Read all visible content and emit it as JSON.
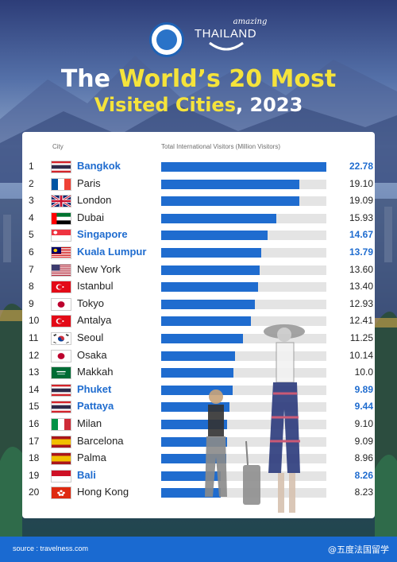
{
  "header": {
    "brand_small": "amazing",
    "brand_big": "THAILAND",
    "title_line1": [
      "The ",
      "World’s 20 Most"
    ],
    "title_line2": [
      "Visited Cities",
      ", 2023"
    ]
  },
  "chart_data": {
    "type": "bar",
    "column_headers": {
      "city": "City",
      "value": "Total International Visitors (Million Visitors)"
    },
    "xlim": [
      0,
      22.78
    ],
    "highlight_color": "#1f6ccf",
    "rows": [
      {
        "rank": "1",
        "city": "Bangkok",
        "value": 22.78,
        "value_label": "22.78",
        "highlight": true,
        "flag": "thailand-flag"
      },
      {
        "rank": "2",
        "city": "Paris",
        "value": 19.1,
        "value_label": "19.10",
        "highlight": false,
        "flag": "france-flag"
      },
      {
        "rank": "3",
        "city": "London",
        "value": 19.09,
        "value_label": "19.09",
        "highlight": false,
        "flag": "uk-flag"
      },
      {
        "rank": "4",
        "city": "Dubai",
        "value": 15.93,
        "value_label": "15.93",
        "highlight": false,
        "flag": "uae-flag"
      },
      {
        "rank": "5",
        "city": "Singapore",
        "value": 14.67,
        "value_label": "14.67",
        "highlight": true,
        "flag": "singapore-flag"
      },
      {
        "rank": "6",
        "city": "Kuala Lumpur",
        "value": 13.79,
        "value_label": "13.79",
        "highlight": true,
        "flag": "malaysia-flag"
      },
      {
        "rank": "7",
        "city": "New York",
        "value": 13.6,
        "value_label": "13.60",
        "highlight": false,
        "flag": "usa-flag"
      },
      {
        "rank": "8",
        "city": "Istanbul",
        "value": 13.4,
        "value_label": "13.40",
        "highlight": false,
        "flag": "turkey-flag"
      },
      {
        "rank": "9",
        "city": "Tokyo",
        "value": 12.93,
        "value_label": "12.93",
        "highlight": false,
        "flag": "japan-flag"
      },
      {
        "rank": "10",
        "city": "Antalya",
        "value": 12.41,
        "value_label": "12.41",
        "highlight": false,
        "flag": "turkey-flag"
      },
      {
        "rank": "11",
        "city": "Seoul",
        "value": 11.25,
        "value_label": "11.25",
        "highlight": false,
        "flag": "korea-flag"
      },
      {
        "rank": "12",
        "city": "Osaka",
        "value": 10.14,
        "value_label": "10.14",
        "highlight": false,
        "flag": "japan-flag"
      },
      {
        "rank": "13",
        "city": "Makkah",
        "value": 10.0,
        "value_label": "10.0",
        "highlight": false,
        "flag": "saudi-flag"
      },
      {
        "rank": "14",
        "city": "Phuket",
        "value": 9.89,
        "value_label": "9.89",
        "highlight": true,
        "flag": "thailand-flag"
      },
      {
        "rank": "15",
        "city": "Pattaya",
        "value": 9.44,
        "value_label": "9.44",
        "highlight": true,
        "flag": "thailand-flag"
      },
      {
        "rank": "16",
        "city": "Milan",
        "value": 9.1,
        "value_label": "9.10",
        "highlight": false,
        "flag": "italy-flag"
      },
      {
        "rank": "17",
        "city": "Barcelona",
        "value": 9.09,
        "value_label": "9.09",
        "highlight": false,
        "flag": "spain-flag"
      },
      {
        "rank": "18",
        "city": "Palma",
        "value": 8.96,
        "value_label": "8.96",
        "highlight": false,
        "flag": "spain-flag"
      },
      {
        "rank": "19",
        "city": "Bali",
        "value": 8.26,
        "value_label": "8.26",
        "highlight": true,
        "flag": "indonesia-flag"
      },
      {
        "rank": "20",
        "city": "Hong Kong",
        "value": 8.23,
        "value_label": "8.23",
        "highlight": false,
        "flag": "hongkong-flag"
      }
    ]
  },
  "footer": {
    "source": "source : travelness.com",
    "watermark": "@五度法国留学"
  }
}
